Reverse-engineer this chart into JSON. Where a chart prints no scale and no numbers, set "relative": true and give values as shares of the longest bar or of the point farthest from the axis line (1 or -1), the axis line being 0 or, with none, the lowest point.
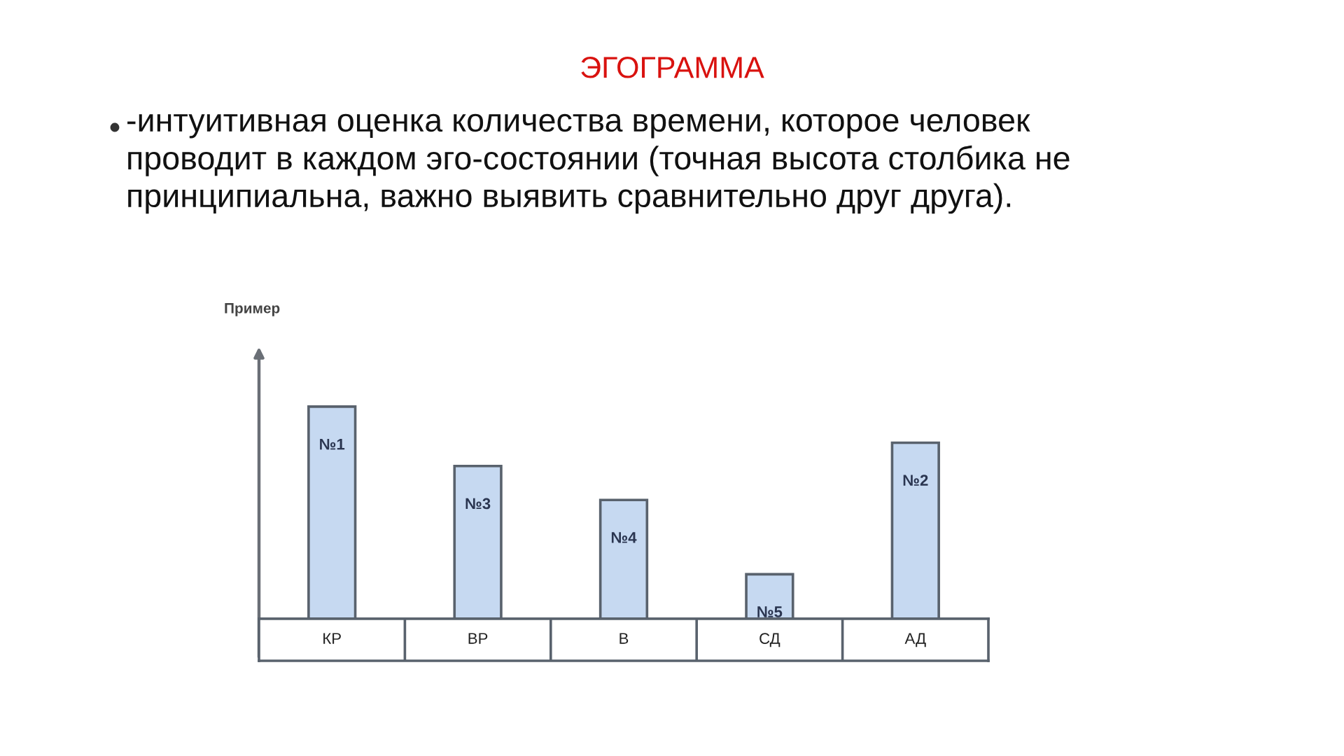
{
  "chart_data": {
    "type": "bar",
    "title": "ЭГОГРАММА",
    "subtitle": "-интуитивная оценка количества времени, которое человек проводит в каждом эго-состоянии (точная высота столбика не принципиальна, важно выявить сравнительно друг друга).",
    "categories": [
      "КР",
      "ВР",
      "В",
      "СД",
      "АД"
    ],
    "values": [
      1,
      0.72,
      0.56,
      0.21,
      0.83
    ],
    "relative": true,
    "color": "#c6d9f1",
    "annotations": [
      "Пример",
      {
        "text": "№1",
        "x": "КР",
        "y": 1
      },
      {
        "text": "№3",
        "x": "ВР",
        "y": 0.72
      },
      {
        "text": "№4",
        "x": "В",
        "y": 0.56
      },
      {
        "text": "№5",
        "x": "СД",
        "y": 0.21
      },
      {
        "text": "№2",
        "x": "АД",
        "y": 0.83
      }
    ]
  }
}
